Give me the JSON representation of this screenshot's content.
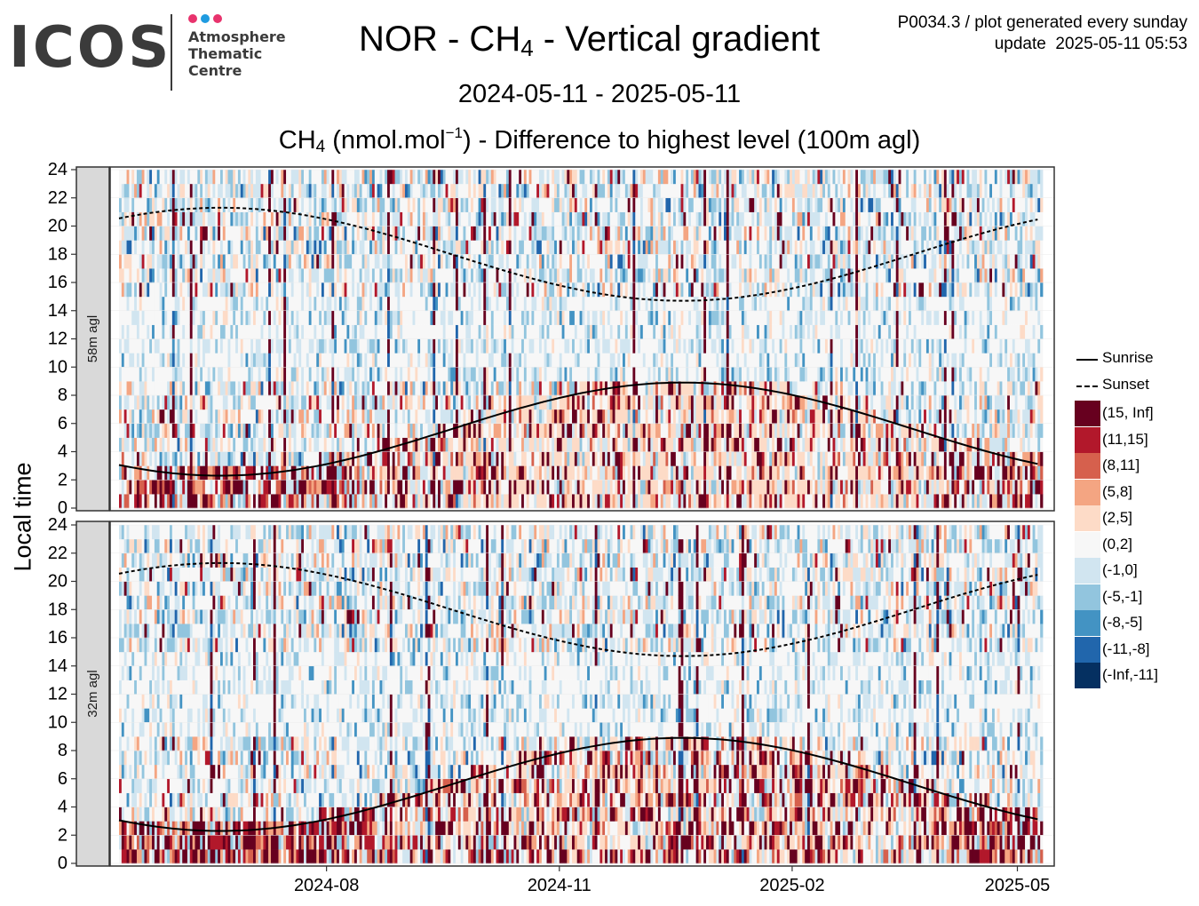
{
  "header": {
    "logo_text": "ICOS",
    "logo_subtitle": "Atmosphere\nThematic\nCentre",
    "logo_dot_colors": [
      "#e8336d",
      "#1f9be0",
      "#e8336d"
    ],
    "title_main": "NOR - CH",
    "title_sub": "4",
    "title_rest": " - Vertical gradient",
    "meta_line1": "P0034.3 / plot generated every sunday",
    "meta_line2": "update  2025-05-11 05:53",
    "date_range": "2024-05-11 - 2025-05-11",
    "subtitle_a": "CH",
    "subtitle_sub": "4",
    "subtitle_b": " (nmol.mol",
    "subtitle_sup": "−1",
    "subtitle_c": ") - Difference to highest level (100m agl)"
  },
  "chart_data": {
    "type": "heatmap",
    "ylabel": "Local time",
    "x_range": [
      "2024-05-11",
      "2025-05-11"
    ],
    "x_ticks": [
      "2024-08",
      "2024-11",
      "2025-02",
      "2025-05"
    ],
    "y_range": [
      0,
      24
    ],
    "y_ticks": [
      0,
      2,
      4,
      6,
      8,
      10,
      12,
      14,
      16,
      18,
      20,
      22,
      24
    ],
    "grid": true,
    "legend_position": "right",
    "panels": [
      {
        "name": "58m agl"
      },
      {
        "name": "32m agl"
      }
    ],
    "sun_lines": [
      {
        "name": "Sunrise",
        "style": "solid",
        "points": [
          [
            "2024-05-11",
            3.3
          ],
          [
            "2024-06-21",
            2.3
          ],
          [
            "2024-08-01",
            3.6
          ],
          [
            "2024-09-01",
            5.0
          ],
          [
            "2024-10-01",
            6.3
          ],
          [
            "2024-11-01",
            7.7
          ],
          [
            "2024-12-21",
            8.9
          ],
          [
            "2025-02-01",
            8.2
          ],
          [
            "2025-03-01",
            7.0
          ],
          [
            "2025-04-01",
            5.3
          ],
          [
            "2025-05-11",
            3.4
          ]
        ]
      },
      {
        "name": "Sunset",
        "style": "dotted",
        "points": [
          [
            "2024-05-11",
            20.2
          ],
          [
            "2024-06-21",
            21.3
          ],
          [
            "2024-08-01",
            20.2
          ],
          [
            "2024-09-01",
            18.6
          ],
          [
            "2024-10-01",
            17.0
          ],
          [
            "2024-11-01",
            15.6
          ],
          [
            "2024-12-21",
            14.7
          ],
          [
            "2025-02-01",
            16.3
          ],
          [
            "2025-03-01",
            17.6
          ],
          [
            "2025-04-01",
            18.9
          ],
          [
            "2025-05-11",
            20.2
          ]
        ]
      }
    ],
    "color_scale": [
      {
        "label": "(15, Inf]",
        "color": "#67001f"
      },
      {
        "label": "(11,15]",
        "color": "#b2182b"
      },
      {
        "label": "(8,11]",
        "color": "#d6604d"
      },
      {
        "label": "(5,8]",
        "color": "#f4a582"
      },
      {
        "label": "(2,5]",
        "color": "#fddbc7"
      },
      {
        "label": "(0,2]",
        "color": "#f7f7f7"
      },
      {
        "label": "(-1,0]",
        "color": "#d1e5f0"
      },
      {
        "label": "(-5,-1]",
        "color": "#92c5de"
      },
      {
        "label": "(-8,-5]",
        "color": "#4393c3"
      },
      {
        "label": "(-11,-8]",
        "color": "#2166ac"
      },
      {
        "label": "(-Inf,-11]",
        "color": "#053061"
      }
    ]
  }
}
